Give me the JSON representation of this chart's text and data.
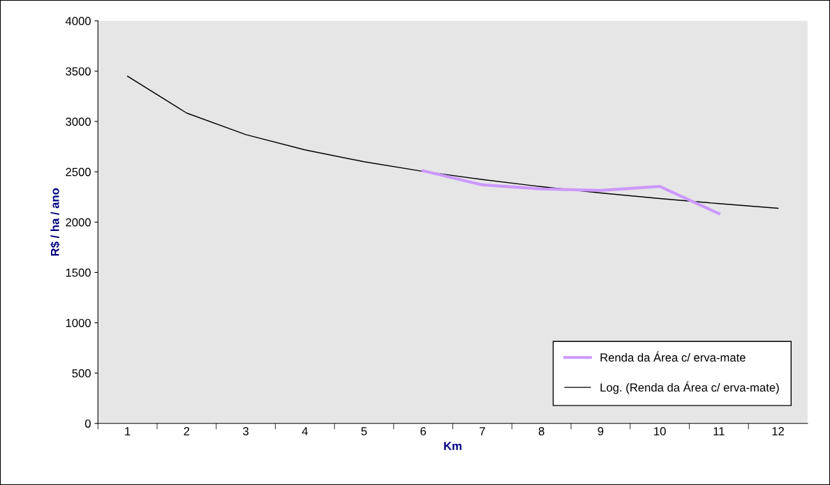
{
  "chart_data": {
    "type": "line",
    "xlabel": "Km",
    "ylabel": "R$ / ha / ano",
    "categories": [
      "1",
      "2",
      "3",
      "4",
      "5",
      "6",
      "7",
      "8",
      "9",
      "10",
      "11",
      "12"
    ],
    "series": [
      {
        "name": "Renda da Área c/ erva-mate",
        "color": "#cc99ff",
        "values": [
          null,
          null,
          null,
          null,
          null,
          2510,
          2370,
          2330,
          2315,
          2355,
          2085,
          null
        ]
      },
      {
        "name": "Log. (Renda da Área c/ erva-mate)",
        "color": "#000000",
        "values": [
          3450,
          3084,
          2870,
          2718,
          2600,
          2504,
          2423,
          2352,
          2290,
          2234,
          2184,
          2138
        ]
      }
    ],
    "ylim": [
      0,
      4000
    ],
    "yticks": [
      0,
      500,
      1000,
      1500,
      2000,
      2500,
      3000,
      3500,
      4000
    ],
    "grid": false,
    "legend": "bottom right",
    "marker": "none",
    "line_style": "solid"
  }
}
